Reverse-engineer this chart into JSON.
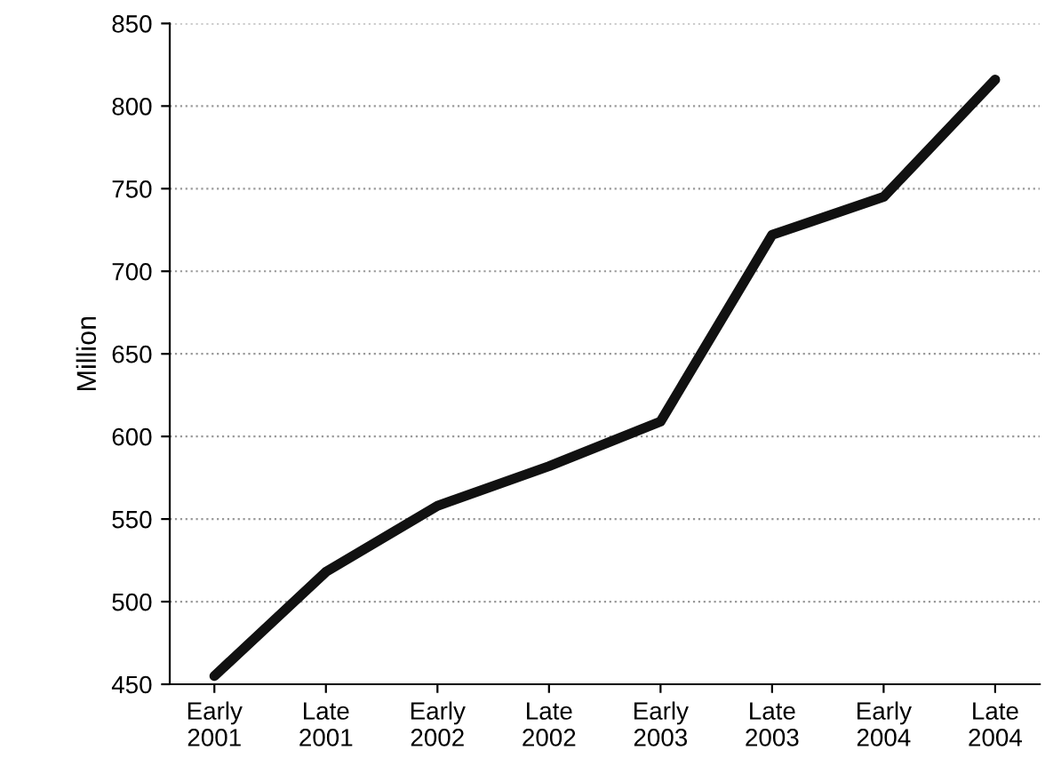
{
  "chart_data": {
    "type": "line",
    "ylabel": "Million",
    "categories": [
      "Early\n2001",
      "Late\n2001",
      "Early\n2002",
      "Late\n2002",
      "Early\n2003",
      "Late\n2003",
      "Early\n2004",
      "Late\n2004"
    ],
    "series": [
      {
        "color": "#111111",
        "values": [
          455,
          518,
          558,
          582,
          609,
          722,
          745,
          816
        ]
      }
    ],
    "ylim": [
      450,
      850
    ],
    "yticks": [
      450,
      500,
      550,
      600,
      650,
      700,
      750,
      800,
      850
    ],
    "grid": "y",
    "marker": "none",
    "line_style": "solid",
    "legend": false
  }
}
